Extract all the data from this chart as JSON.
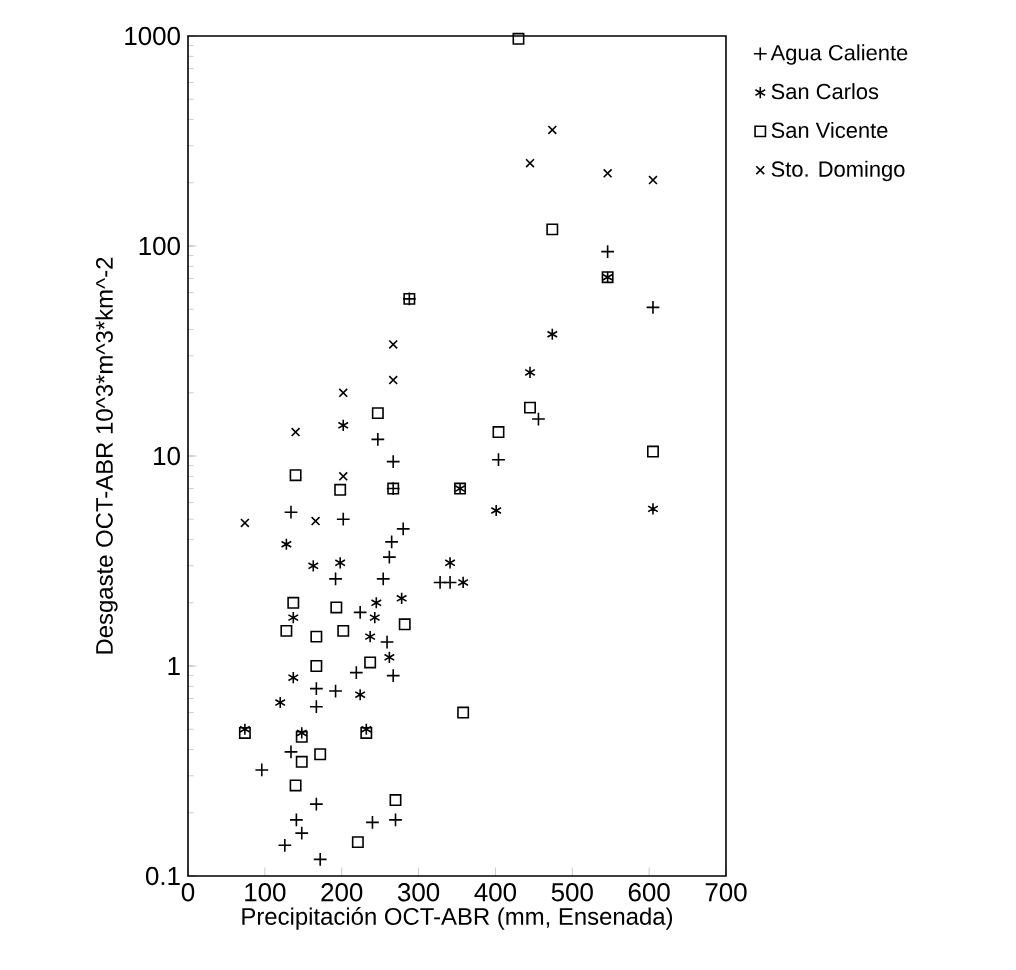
{
  "chart_data": {
    "type": "scatter",
    "xlabel": "Precipitación OCT-ABR (mm, Ensenada)",
    "ylabel": "Desgaste OCT-ABR 10^3*m^3*km^-2",
    "log": "y",
    "xlim": [
      0,
      700
    ],
    "xticks": [
      0,
      100,
      200,
      300,
      400,
      500,
      600,
      700
    ],
    "ylim": [
      0.1,
      1000
    ],
    "yticks": [
      {
        "value": 0.1,
        "label": "0.1"
      },
      1,
      10,
      100,
      1000
    ],
    "grid": false,
    "legend": "right",
    "series": [
      {
        "name": "Agua Caliente",
        "color": "#000000",
        "x": [
          288,
          247,
          267,
          267,
          546,
          605,
          456,
          404,
          328,
          341,
          134,
          202,
          280,
          265,
          192,
          254,
          262,
          224,
          259,
          219,
          267,
          167,
          192,
          167,
          134,
          96,
          167,
          141,
          240,
          270,
          126,
          148,
          172
        ],
        "values": [
          56,
          12,
          9.4,
          7,
          94,
          51,
          15,
          9.6,
          2.5,
          2.5,
          5.4,
          5.0,
          4.5,
          3.9,
          2.6,
          2.6,
          3.3,
          1.8,
          1.3,
          0.93,
          0.9,
          0.78,
          0.76,
          0.64,
          0.39,
          0.32,
          0.22,
          0.185,
          0.18,
          0.185,
          0.14,
          0.16,
          0.12
        ]
      },
      {
        "name": "San Carlos",
        "color": "#000000",
        "x": [
          202,
          546,
          474,
          445,
          354,
          401,
          605,
          341,
          358,
          128,
          163,
          198,
          137,
          278,
          245,
          243,
          237,
          262,
          137,
          120,
          224,
          74,
          232,
          148
        ],
        "values": [
          14,
          71,
          38,
          25,
          7,
          5.5,
          5.6,
          3.1,
          2.5,
          3.8,
          3.0,
          3.1,
          1.7,
          2.1,
          2.0,
          1.7,
          1.38,
          1.1,
          0.88,
          0.67,
          0.73,
          0.5,
          0.5,
          0.48
        ]
      },
      {
        "name": "San Vicente",
        "color": "#000000",
        "x": [
          288,
          247,
          140,
          267,
          430,
          474,
          546,
          445,
          404,
          605,
          354,
          358,
          198,
          137,
          193,
          128,
          167,
          202,
          282,
          167,
          237,
          74,
          232,
          148,
          172,
          148,
          140,
          270,
          221
        ],
        "values": [
          56,
          16,
          8.1,
          7,
          970,
          120,
          71,
          17,
          13,
          10.5,
          7,
          0.6,
          6.9,
          2.0,
          1.9,
          1.47,
          1.38,
          1.47,
          1.58,
          1.0,
          1.04,
          0.48,
          0.48,
          0.46,
          0.38,
          0.35,
          0.27,
          0.23,
          0.145
        ]
      },
      {
        "name": "Sto. Domingo",
        "color": "#000000",
        "x": [
          267,
          267,
          202,
          140,
          202,
          474,
          445,
          546,
          605,
          74,
          166
        ],
        "values": [
          34,
          23,
          20,
          13,
          8,
          357,
          248,
          222,
          206,
          4.8,
          4.9
        ]
      }
    ]
  }
}
